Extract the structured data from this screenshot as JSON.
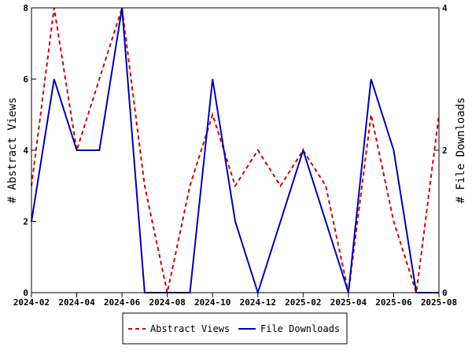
{
  "chart_data": {
    "type": "line",
    "x": [
      "2024-02",
      "2024-03",
      "2024-04",
      "2024-05",
      "2024-06",
      "2024-07",
      "2024-08",
      "2024-09",
      "2024-10",
      "2024-11",
      "2024-12",
      "2025-01",
      "2025-02",
      "2025-03",
      "2025-04",
      "2025-05",
      "2025-06",
      "2025-07",
      "2025-08"
    ],
    "x_tick_labels": [
      "2024-02",
      "2024-04",
      "2024-06",
      "2024-08",
      "2024-10",
      "2024-12",
      "2025-02",
      "2025-04",
      "2025-06",
      "2025-08"
    ],
    "ylabel_left": "# Abstract Views",
    "ylabel_right": "# File Downloads",
    "ylim_left": [
      0,
      8
    ],
    "ylim_right": [
      0,
      4
    ],
    "yticks_left": [
      "0",
      "2",
      "4",
      "6",
      "8"
    ],
    "yticks_right": [
      "0",
      "2",
      "4"
    ],
    "grid": false,
    "legend_position": "bottom",
    "series": [
      {
        "name": "Abstract Views",
        "axis": "left",
        "color": "#cc0000",
        "style": "dashed",
        "values": [
          3,
          8,
          4,
          6,
          8,
          3,
          0,
          3,
          5,
          3,
          4,
          3,
          4,
          3,
          0,
          5,
          2,
          0,
          5
        ]
      },
      {
        "name": "File Downloads",
        "axis": "right",
        "color": "#0000aa",
        "style": "solid",
        "values": [
          1,
          3,
          2,
          2,
          4,
          0,
          0,
          0,
          3,
          1,
          0,
          1,
          2,
          1,
          0,
          3,
          2,
          0,
          0
        ]
      }
    ]
  }
}
